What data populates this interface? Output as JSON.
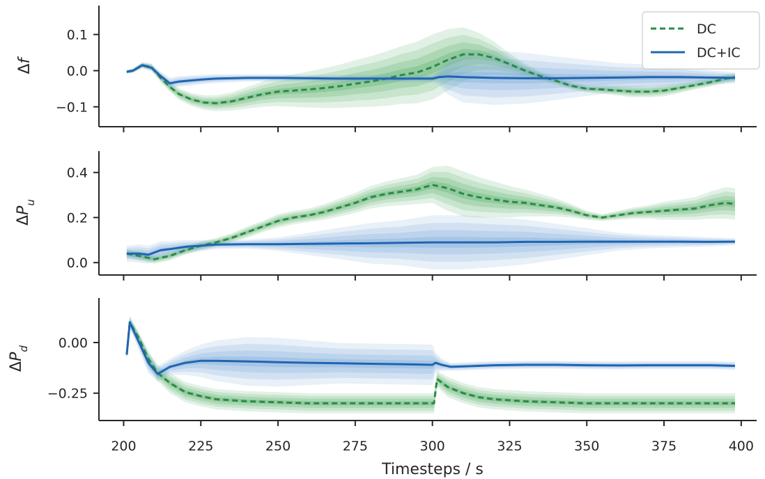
{
  "chart_data": {
    "type": "line",
    "xlabel": "Timesteps / s",
    "xlim": [
      192,
      405
    ],
    "xticks": [
      200,
      225,
      250,
      275,
      300,
      325,
      350,
      375,
      400
    ],
    "legend": {
      "placement": "top-right",
      "entries": [
        {
          "label": "DC",
          "style": "dashed",
          "color": "#2a8a45"
        },
        {
          "label": "DC+IC",
          "style": "solid",
          "color": "#1f65b0"
        }
      ]
    },
    "colors": {
      "DC": "#2a8a45",
      "DC_band": "#4daa5e",
      "DC+IC": "#1f65b0",
      "DC+IC_band": "#6ea3d6"
    },
    "panels": [
      {
        "ylabel_main": "Δ",
        "ylabel_sym": "f",
        "ylabel_sub": "",
        "ylim": [
          -0.155,
          0.18
        ],
        "yticks": [
          -0.1,
          0.0,
          0.1
        ],
        "ytick_labels": [
          "−0.1",
          "0.0",
          "0.1"
        ],
        "series": [
          {
            "name": "DC",
            "x": [
              201,
              203,
              206,
              209,
              212,
              215,
              218,
              222,
              226,
              230,
              235,
              240,
              245,
              250,
              255,
              260,
              265,
              270,
              275,
              280,
              285,
              290,
              295,
              300,
              305,
              310,
              315,
              320,
              325,
              330,
              335,
              340,
              345,
              350,
              355,
              360,
              365,
              370,
              375,
              380,
              385,
              390,
              395,
              398
            ],
            "y": [
              -0.003,
              0.0,
              0.015,
              0.01,
              -0.02,
              -0.045,
              -0.065,
              -0.08,
              -0.088,
              -0.09,
              -0.085,
              -0.075,
              -0.065,
              -0.058,
              -0.055,
              -0.052,
              -0.048,
              -0.043,
              -0.036,
              -0.03,
              -0.022,
              -0.012,
              -0.005,
              0.01,
              0.03,
              0.045,
              0.045,
              0.035,
              0.018,
              0.0,
              -0.015,
              -0.028,
              -0.042,
              -0.05,
              -0.052,
              -0.055,
              -0.058,
              -0.058,
              -0.055,
              -0.048,
              -0.04,
              -0.032,
              -0.022,
              -0.018
            ],
            "band": [
              0.005,
              0.006,
              0.008,
              0.01,
              0.012,
              0.014,
              0.016,
              0.018,
              0.02,
              0.022,
              0.025,
              0.03,
              0.035,
              0.04,
              0.045,
              0.05,
              0.055,
              0.06,
              0.065,
              0.07,
              0.075,
              0.08,
              0.085,
              0.09,
              0.085,
              0.075,
              0.06,
              0.045,
              0.03,
              0.02,
              0.012,
              0.01,
              0.01,
              0.01,
              0.012,
              0.014,
              0.016,
              0.016,
              0.016,
              0.014,
              0.012,
              0.012,
              0.012,
              0.012
            ]
          },
          {
            "name": "DC+IC",
            "x": [
              201,
              203,
              206,
              209,
              212,
              215,
              218,
              222,
              226,
              230,
              240,
              250,
              260,
              270,
              280,
              290,
              300,
              302,
              305,
              310,
              320,
              330,
              340,
              350,
              360,
              370,
              380,
              390,
              398
            ],
            "y": [
              -0.003,
              0.0,
              0.015,
              0.008,
              -0.015,
              -0.035,
              -0.03,
              -0.027,
              -0.024,
              -0.022,
              -0.02,
              -0.02,
              -0.021,
              -0.022,
              -0.022,
              -0.022,
              -0.022,
              -0.018,
              -0.016,
              -0.018,
              -0.02,
              -0.021,
              -0.021,
              -0.02,
              -0.019,
              -0.018,
              -0.018,
              -0.019,
              -0.02
            ],
            "band": [
              0.005,
              0.006,
              0.008,
              0.01,
              0.012,
              0.015,
              0.015,
              0.014,
              0.013,
              0.012,
              0.01,
              0.01,
              0.01,
              0.01,
              0.01,
              0.01,
              0.01,
              0.02,
              0.05,
              0.07,
              0.075,
              0.07,
              0.06,
              0.05,
              0.04,
              0.035,
              0.03,
              0.02,
              0.015
            ]
          }
        ]
      },
      {
        "ylabel_main": "Δ",
        "ylabel_sym": "P",
        "ylabel_sub": "u",
        "ylim": [
          -0.055,
          0.495
        ],
        "yticks": [
          0.0,
          0.2,
          0.4
        ],
        "ytick_labels": [
          "0.0",
          "0.2",
          "0.4"
        ],
        "series": [
          {
            "name": "DC",
            "x": [
              201,
              205,
              210,
              215,
              220,
              225,
              230,
              235,
              240,
              245,
              250,
              255,
              260,
              265,
              270,
              275,
              280,
              285,
              290,
              295,
              300,
              305,
              310,
              315,
              320,
              325,
              330,
              335,
              340,
              345,
              350,
              355,
              360,
              365,
              370,
              375,
              380,
              385,
              390,
              395,
              398
            ],
            "y": [
              0.04,
              0.03,
              0.015,
              0.03,
              0.055,
              0.075,
              0.09,
              0.11,
              0.135,
              0.16,
              0.185,
              0.2,
              0.21,
              0.225,
              0.245,
              0.265,
              0.29,
              0.305,
              0.315,
              0.325,
              0.345,
              0.33,
              0.305,
              0.29,
              0.28,
              0.27,
              0.265,
              0.255,
              0.245,
              0.23,
              0.21,
              0.2,
              0.21,
              0.22,
              0.225,
              0.23,
              0.235,
              0.24,
              0.255,
              0.265,
              0.26
            ],
            "band": [
              0.02,
              0.02,
              0.02,
              0.02,
              0.02,
              0.02,
              0.02,
              0.02,
              0.025,
              0.025,
              0.03,
              0.03,
              0.03,
              0.035,
              0.04,
              0.045,
              0.05,
              0.055,
              0.06,
              0.065,
              0.08,
              0.1,
              0.1,
              0.09,
              0.08,
              0.07,
              0.06,
              0.05,
              0.04,
              0.03,
              0.02,
              0.015,
              0.02,
              0.025,
              0.03,
              0.04,
              0.045,
              0.05,
              0.06,
              0.07,
              0.07
            ]
          },
          {
            "name": "DC+IC",
            "x": [
              201,
              205,
              208,
              212,
              215,
              220,
              225,
              230,
              240,
              250,
              260,
              270,
              280,
              290,
              300,
              310,
              320,
              330,
              340,
              350,
              360,
              370,
              380,
              390,
              398
            ],
            "y": [
              0.04,
              0.04,
              0.035,
              0.055,
              0.06,
              0.07,
              0.075,
              0.08,
              0.082,
              0.082,
              0.083,
              0.085,
              0.086,
              0.088,
              0.09,
              0.09,
              0.09,
              0.092,
              0.092,
              0.093,
              0.093,
              0.093,
              0.093,
              0.092,
              0.093
            ],
            "band": [
              0.035,
              0.04,
              0.04,
              0.04,
              0.035,
              0.03,
              0.025,
              0.02,
              0.02,
              0.03,
              0.05,
              0.07,
              0.09,
              0.1,
              0.12,
              0.12,
              0.11,
              0.1,
              0.08,
              0.06,
              0.04,
              0.03,
              0.025,
              0.02,
              0.015
            ]
          }
        ]
      },
      {
        "ylabel_main": "Δ",
        "ylabel_sym": "P",
        "ylabel_sub": "d",
        "ylim": [
          -0.385,
          0.22
        ],
        "yticks": [
          -0.25,
          0.0
        ],
        "ytick_labels": [
          "−0.25",
          "0.00"
        ],
        "series": [
          {
            "name": "DC",
            "x": [
              201,
              202,
              205,
              208,
              211,
              215,
              220,
              225,
              230,
              240,
              250,
              260,
              270,
              280,
              290,
              300,
              300.5,
              301.5,
              305,
              310,
              315,
              320,
              330,
              340,
              350,
              360,
              370,
              380,
              390,
              398
            ],
            "y": [
              -0.06,
              0.1,
              0.02,
              -0.08,
              -0.15,
              -0.2,
              -0.245,
              -0.265,
              -0.28,
              -0.29,
              -0.295,
              -0.3,
              -0.3,
              -0.3,
              -0.3,
              -0.3,
              -0.3,
              -0.18,
              -0.22,
              -0.25,
              -0.27,
              -0.28,
              -0.29,
              -0.295,
              -0.3,
              -0.3,
              -0.3,
              -0.3,
              -0.3,
              -0.3
            ],
            "band": [
              0.02,
              0.03,
              0.03,
              0.04,
              0.04,
              0.05,
              0.05,
              0.05,
              0.05,
              0.05,
              0.05,
              0.05,
              0.05,
              0.05,
              0.05,
              0.05,
              0.05,
              0.04,
              0.05,
              0.05,
              0.05,
              0.05,
              0.05,
              0.05,
              0.05,
              0.05,
              0.05,
              0.05,
              0.05,
              0.05
            ]
          },
          {
            "name": "DC+IC",
            "x": [
              201,
              202,
              205,
              208,
              211,
              215,
              220,
              225,
              230,
              240,
              250,
              260,
              270,
              280,
              290,
              300,
              301,
              303,
              306,
              310,
              320,
              330,
              340,
              350,
              360,
              370,
              380,
              390,
              398
            ],
            "y": [
              -0.06,
              0.1,
              0.0,
              -0.1,
              -0.155,
              -0.12,
              -0.1,
              -0.09,
              -0.09,
              -0.093,
              -0.097,
              -0.1,
              -0.102,
              -0.105,
              -0.107,
              -0.11,
              -0.1,
              -0.11,
              -0.12,
              -0.118,
              -0.112,
              -0.11,
              -0.11,
              -0.112,
              -0.113,
              -0.112,
              -0.112,
              -0.112,
              -0.115
            ],
            "band": [
              0.02,
              0.03,
              0.04,
              0.05,
              0.04,
              0.04,
              0.06,
              0.08,
              0.1,
              0.12,
              0.12,
              0.11,
              0.1,
              0.1,
              0.1,
              0.1,
              0.05,
              0.03,
              0.02,
              0.02,
              0.02,
              0.02,
              0.02,
              0.02,
              0.02,
              0.02,
              0.02,
              0.02,
              0.02
            ]
          }
        ]
      }
    ]
  }
}
